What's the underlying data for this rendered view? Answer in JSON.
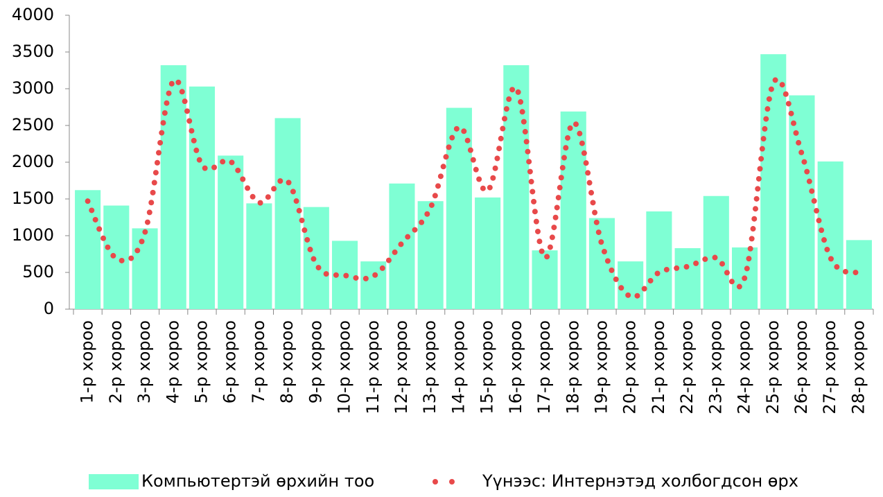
{
  "chart_data": {
    "type": "bar_line",
    "categories": [
      "1-р хороо",
      "2-р хороо",
      "3-р хороо",
      "4-р хороо",
      "5-р хороо",
      "6-р хороо",
      "7-р хороо",
      "8-р хороо",
      "9-р хороо",
      "10-р хороо",
      "11-р хороо",
      "12-р хороо",
      "13-р хороо",
      "14-р хороо",
      "15-р хороо",
      "16-р хороо",
      "17-р хороо",
      "18-р хороо",
      "19-р хороо",
      "20-р хороо",
      "21-р хороо",
      "22-р хороо",
      "23-р хороо",
      "24-р хороо",
      "25-р хороо",
      "26-р хороо",
      "27-р хороо",
      "28-р хороо"
    ],
    "series": [
      {
        "name": "Компьютертэй өрхийн тоо",
        "type": "bar",
        "color": "#7fffd4",
        "values": [
          1620,
          1410,
          1100,
          3320,
          3030,
          2090,
          1440,
          2600,
          1390,
          930,
          650,
          1710,
          1470,
          2740,
          1520,
          3320,
          800,
          2690,
          1240,
          650,
          1330,
          830,
          1540,
          840,
          3470,
          2910,
          2010,
          940
        ]
      },
      {
        "name": "Үүнээс: Интернэтэд холбогдсон өрх",
        "type": "line",
        "color": "#e8494a",
        "values": [
          1470,
          690,
          1040,
          3110,
          1960,
          2010,
          1450,
          1740,
          610,
          460,
          450,
          900,
          1380,
          2480,
          1610,
          3010,
          700,
          2540,
          880,
          170,
          500,
          580,
          700,
          430,
          3075,
          2110,
          700,
          490
        ]
      }
    ],
    "ylim": [
      0,
      4000
    ],
    "yticks": [
      0,
      500,
      1000,
      1500,
      2000,
      2500,
      3000,
      3500,
      4000
    ],
    "legend": "bottom"
  }
}
